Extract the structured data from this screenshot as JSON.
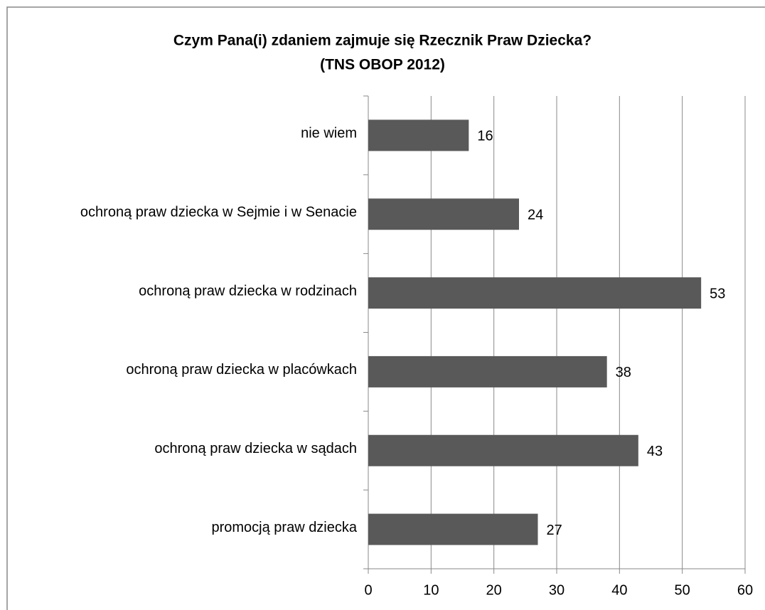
{
  "chart_data": {
    "type": "bar",
    "orientation": "horizontal",
    "title": "Czym Pana(i) zdaniem zajmuje się Rzecznik Praw Dziecka?",
    "subtitle": "(TNS OBOP 2012)",
    "categories": [
      "nie wiem",
      "ochroną praw dziecka w Sejmie i w Senacie",
      "ochroną praw dziecka w rodzinach",
      "ochroną praw dziecka w placówkach",
      "ochroną praw dziecka w sądach",
      "promocją praw dziecka"
    ],
    "values": [
      16,
      24,
      53,
      38,
      43,
      27
    ],
    "color": "#595959",
    "xlim": [
      0,
      60
    ],
    "xticks": [
      0,
      10,
      20,
      30,
      40,
      50,
      60
    ],
    "grid": true
  }
}
